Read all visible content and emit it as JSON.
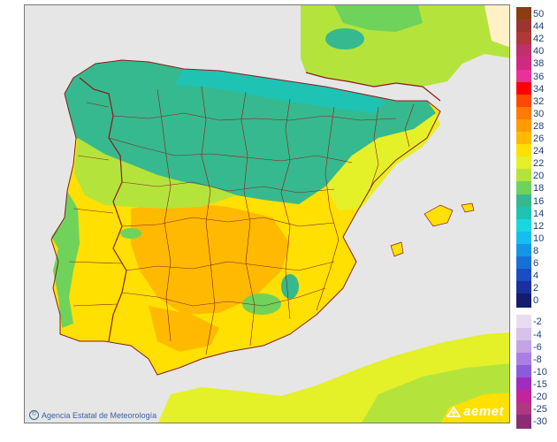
{
  "map": {
    "credit": "Agencia Estatal de Meteorología",
    "logo": "aemet"
  },
  "legend": {
    "positive": [
      {
        "label": "50",
        "color": "#8b3c10"
      },
      {
        "label": "44",
        "color": "#9c3530"
      },
      {
        "label": "42",
        "color": "#b03838"
      },
      {
        "label": "40",
        "color": "#c0306a"
      },
      {
        "label": "38",
        "color": "#d02a80"
      },
      {
        "label": "36",
        "color": "#e8329a"
      },
      {
        "label": "34",
        "color": "#ff0000"
      },
      {
        "label": "32",
        "color": "#ff4800"
      },
      {
        "label": "30",
        "color": "#ff7a00"
      },
      {
        "label": "28",
        "color": "#ff9a00"
      },
      {
        "label": "26",
        "color": "#ffba00"
      },
      {
        "label": "24",
        "color": "#ffe000"
      },
      {
        "label": "22",
        "color": "#e4f028"
      },
      {
        "label": "20",
        "color": "#b4e43c"
      },
      {
        "label": "18",
        "color": "#6fd25a"
      },
      {
        "label": "16",
        "color": "#36b98e"
      },
      {
        "label": "14",
        "color": "#1ec3b4"
      },
      {
        "label": "12",
        "color": "#19d7e0"
      },
      {
        "label": "10",
        "color": "#14bfef"
      },
      {
        "label": "8",
        "color": "#1496e6"
      },
      {
        "label": "6",
        "color": "#1670d8"
      },
      {
        "label": "4",
        "color": "#1a4cc4"
      },
      {
        "label": "2",
        "color": "#1a30a0"
      },
      {
        "label": "0",
        "color": "#141c6c"
      }
    ],
    "negative": [
      {
        "label": "-2",
        "color": "#e8dcf0"
      },
      {
        "label": "-4",
        "color": "#d7c2ea"
      },
      {
        "label": "-6",
        "color": "#c4a4e4"
      },
      {
        "label": "-8",
        "color": "#aa7ee2"
      },
      {
        "label": "-10",
        "color": "#8c5adc"
      },
      {
        "label": "-15",
        "color": "#a02cbe"
      },
      {
        "label": "-20",
        "color": "#c2249a"
      },
      {
        "label": "-25",
        "color": "#b03882"
      },
      {
        "label": "-30",
        "color": "#8a2c76"
      }
    ]
  }
}
